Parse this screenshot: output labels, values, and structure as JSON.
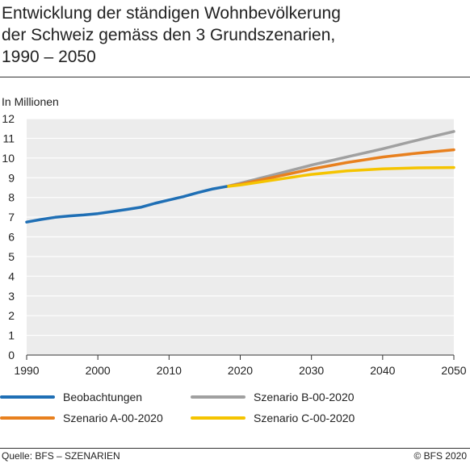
{
  "title_lines": [
    "Entwicklung der ständigen Wohnbevölkerung",
    "der Schweiz gemäss den 3 Grundszenarien,",
    "1990 – 2050"
  ],
  "footer": {
    "source": "Quelle: BFS – SZENARIEN",
    "copyright": "© BFS 2020"
  },
  "chart_data": {
    "type": "line",
    "title": "Entwicklung der ständigen Wohnbevölkerung der Schweiz gemäss den 3 Grundszenarien, 1990 – 2050",
    "ylabel": "In Millionen",
    "xlabel": "",
    "xlim": [
      1990,
      2050
    ],
    "ylim": [
      0,
      12
    ],
    "x_ticks": [
      1990,
      2000,
      2010,
      2020,
      2030,
      2040,
      2050
    ],
    "y_ticks": [
      0,
      1,
      2,
      3,
      4,
      5,
      6,
      7,
      8,
      9,
      10,
      11,
      12
    ],
    "grid": "horizontal",
    "legend": "bottom",
    "series": [
      {
        "name": "Beobachtungen",
        "color": "#1f6fb5",
        "x": [
          1990,
          1992,
          1994,
          1996,
          1998,
          2000,
          2002,
          2004,
          2006,
          2008,
          2010,
          2012,
          2014,
          2016,
          2018
        ],
        "y": [
          6.75,
          6.88,
          6.99,
          7.06,
          7.11,
          7.18,
          7.28,
          7.39,
          7.5,
          7.7,
          7.87,
          8.04,
          8.24,
          8.42,
          8.55
        ]
      },
      {
        "name": "Szenario B-00-2020",
        "color": "#a0a0a0",
        "x": [
          2018,
          2020,
          2025,
          2030,
          2035,
          2040,
          2045,
          2050
        ],
        "y": [
          8.55,
          8.72,
          9.18,
          9.64,
          10.06,
          10.47,
          10.92,
          11.35
        ]
      },
      {
        "name": "Szenario A-00-2020",
        "color": "#e8801e",
        "x": [
          2018,
          2020,
          2025,
          2030,
          2035,
          2040,
          2045,
          2050
        ],
        "y": [
          8.55,
          8.67,
          9.05,
          9.44,
          9.77,
          10.05,
          10.25,
          10.42
        ]
      },
      {
        "name": "Szenario C-00-2020",
        "color": "#f5c400",
        "x": [
          2018,
          2020,
          2025,
          2030,
          2035,
          2040,
          2045,
          2050
        ],
        "y": [
          8.55,
          8.63,
          8.9,
          9.17,
          9.35,
          9.45,
          9.5,
          9.52
        ]
      }
    ]
  }
}
